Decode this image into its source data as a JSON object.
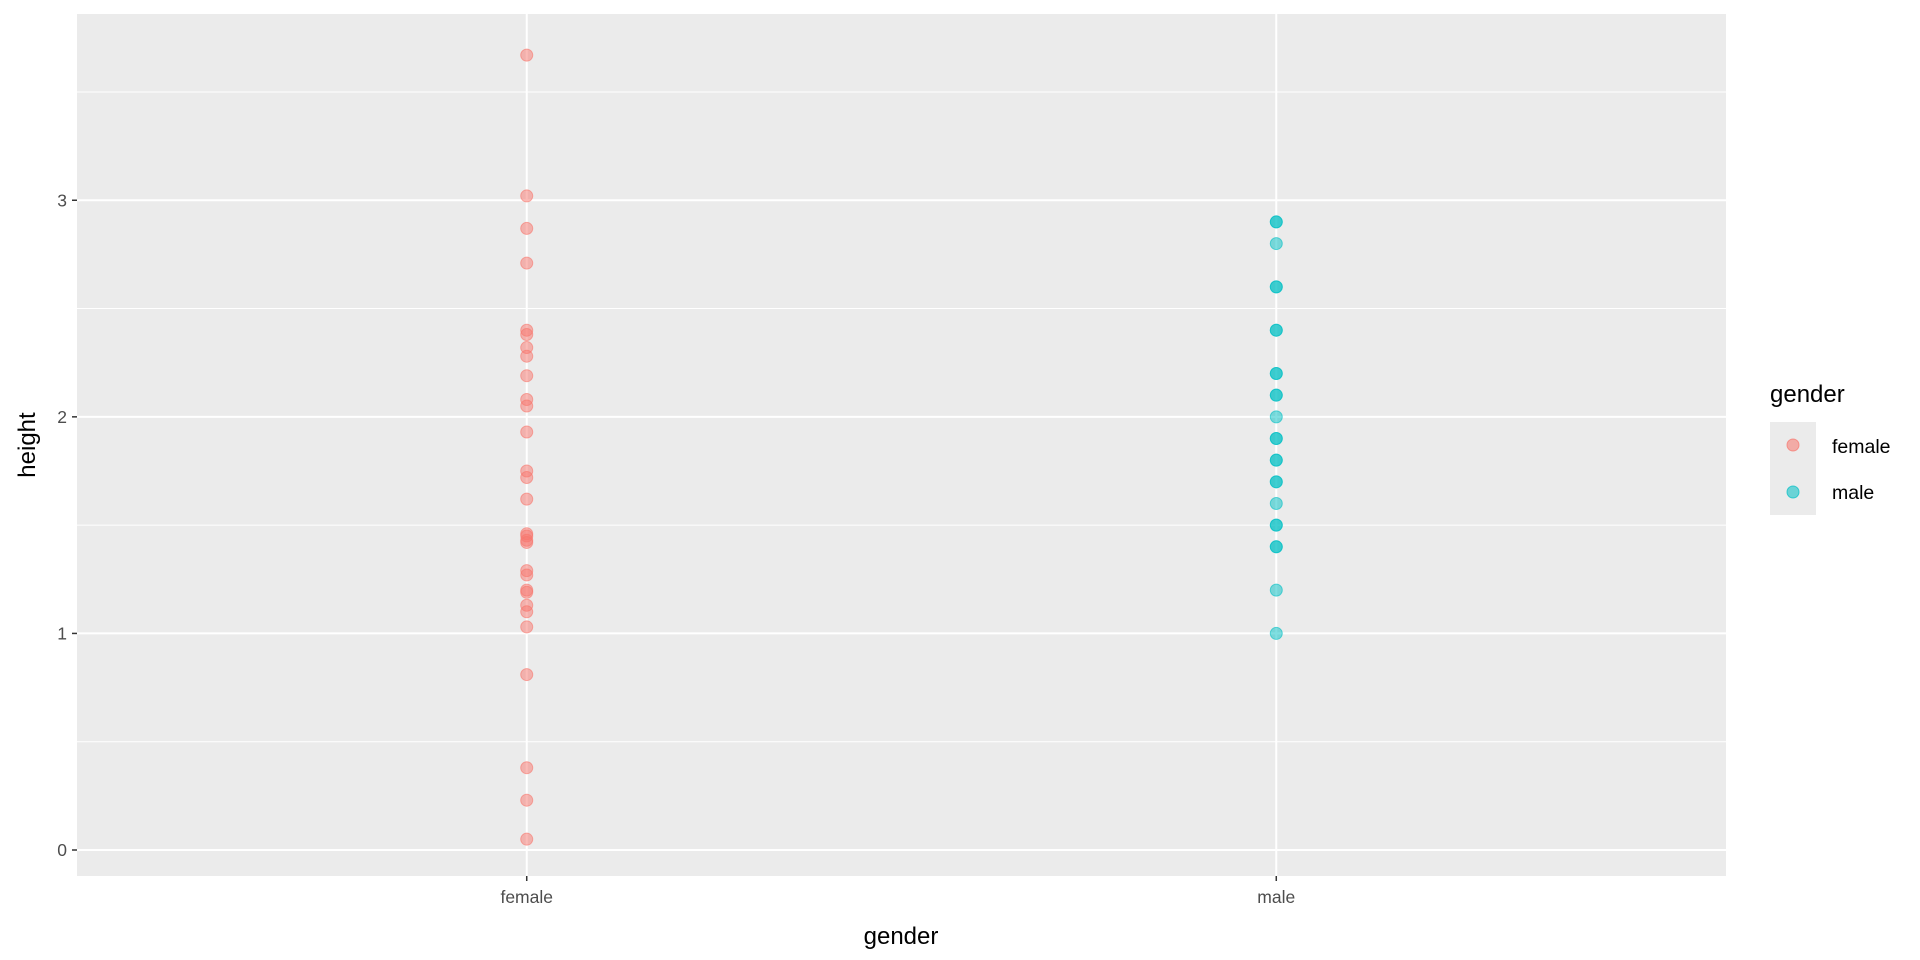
{
  "chart_data": {
    "type": "scatter",
    "title": "",
    "xlabel": "gender",
    "ylabel": "height",
    "categories": [
      "female",
      "male"
    ],
    "ylim": [
      -0.12,
      3.86
    ],
    "y_ticks": [
      0,
      1,
      2,
      3
    ],
    "y_tick_labels": [
      "0",
      "1",
      "2",
      "3"
    ],
    "grid": true,
    "legend": {
      "title": "gender",
      "position": "right"
    },
    "series": [
      {
        "name": "female",
        "color": "#F8766D",
        "category": "female",
        "values": [
          3.67,
          3.02,
          2.87,
          2.71,
          2.4,
          2.38,
          2.32,
          2.28,
          2.19,
          2.08,
          2.05,
          1.93,
          1.75,
          1.72,
          1.62,
          1.46,
          1.45,
          1.43,
          1.42,
          1.29,
          1.27,
          1.2,
          1.19,
          1.13,
          1.1,
          1.03,
          0.81,
          0.38,
          0.23,
          0.05
        ]
      },
      {
        "name": "male",
        "color": "#00BFC4",
        "category": "male",
        "values": [
          2.9,
          2.9,
          2.8,
          2.6,
          2.6,
          2.4,
          2.4,
          2.2,
          2.2,
          2.1,
          2.1,
          2.0,
          1.9,
          1.9,
          1.8,
          1.8,
          1.7,
          1.7,
          1.6,
          1.5,
          1.5,
          1.4,
          1.4,
          1.2,
          1.0
        ]
      }
    ]
  }
}
